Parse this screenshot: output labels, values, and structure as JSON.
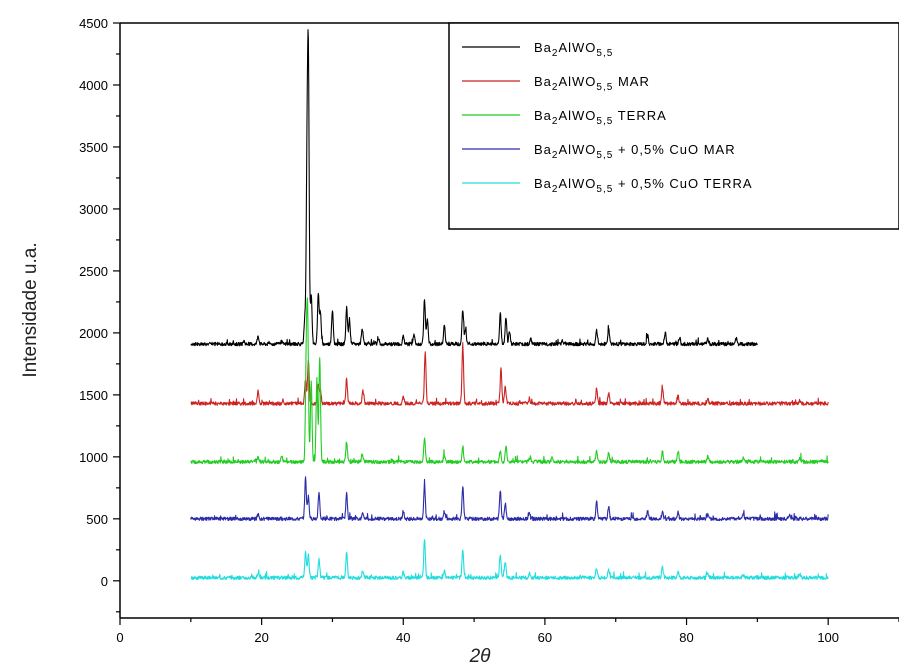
{
  "chart_data": {
    "type": "line",
    "title": "",
    "xlabel": "2θ",
    "ylabel": "Intensidade u.a.",
    "xlim": [
      0,
      110
    ],
    "ylim": [
      -300,
      4500
    ],
    "xticks": [
      0,
      20,
      40,
      60,
      80,
      100
    ],
    "yticks": [
      0,
      500,
      1000,
      1500,
      2000,
      2500,
      3000,
      3500,
      4000,
      4500
    ],
    "grid": false,
    "legend_position": "top-right",
    "series": [
      {
        "name": "Ba2AlWO5,5",
        "legend_parts": {
          "base": "Ba",
          "sub1": "2",
          "mid": "AlWO",
          "sub2": "5,5",
          "suffix": ""
        },
        "color": "#000000",
        "baseline": 1910,
        "x_range": [
          10,
          90
        ],
        "peaks": [
          [
            17.5,
            25
          ],
          [
            19.5,
            70
          ],
          [
            22.8,
            20
          ],
          [
            26.1,
            200
          ],
          [
            26.4,
            1300
          ],
          [
            26.6,
            2200
          ],
          [
            27.0,
            400
          ],
          [
            28.0,
            400
          ],
          [
            28.3,
            250
          ],
          [
            30.0,
            280
          ],
          [
            32.0,
            300
          ],
          [
            32.4,
            200
          ],
          [
            34.2,
            130
          ],
          [
            36.5,
            40
          ],
          [
            40.0,
            60
          ],
          [
            41.5,
            80
          ],
          [
            43.0,
            360
          ],
          [
            43.4,
            200
          ],
          [
            45.8,
            150
          ],
          [
            48.4,
            280
          ],
          [
            48.8,
            120
          ],
          [
            53.7,
            240
          ],
          [
            54.5,
            220
          ],
          [
            55.0,
            100
          ],
          [
            58.0,
            40
          ],
          [
            62.5,
            30
          ],
          [
            67.3,
            110
          ],
          [
            69.0,
            130
          ],
          [
            74.5,
            70
          ],
          [
            77.0,
            90
          ],
          [
            79.0,
            50
          ],
          [
            83.0,
            50
          ],
          [
            87.0,
            45
          ]
        ]
      },
      {
        "name": "Ba2AlWO5,5 MAR",
        "legend_parts": {
          "base": "Ba",
          "sub1": "2",
          "mid": "AlWO",
          "sub2": "5,5",
          "suffix": "MAR"
        },
        "color": "#cc2222",
        "baseline": 1430,
        "x_range": [
          10,
          100
        ],
        "peaks": [
          [
            19.5,
            100
          ],
          [
            23.0,
            30
          ],
          [
            26.2,
            200
          ],
          [
            26.6,
            350
          ],
          [
            28.0,
            150
          ],
          [
            28.3,
            110
          ],
          [
            32.0,
            200
          ],
          [
            34.3,
            100
          ],
          [
            40.0,
            60
          ],
          [
            43.1,
            420
          ],
          [
            48.4,
            460
          ],
          [
            53.8,
            280
          ],
          [
            54.4,
            140
          ],
          [
            57.8,
            40
          ],
          [
            67.3,
            120
          ],
          [
            69.0,
            90
          ],
          [
            76.6,
            130
          ],
          [
            78.8,
            60
          ],
          [
            83.0,
            40
          ],
          [
            96.0,
            30
          ]
        ]
      },
      {
        "name": "Ba2AlWO5,5 TERRA",
        "legend_parts": {
          "base": "Ba",
          "sub1": "2",
          "mid": "AlWO",
          "sub2": "5,5",
          "suffix": "TERRA"
        },
        "color": "#22cc22",
        "baseline": 960,
        "x_range": [
          10,
          100
        ],
        "peaks": [
          [
            19.5,
            40
          ],
          [
            22.8,
            50
          ],
          [
            26.3,
            780
          ],
          [
            26.5,
            1100
          ],
          [
            27.0,
            650
          ],
          [
            27.8,
            650
          ],
          [
            28.2,
            850
          ],
          [
            32.0,
            160
          ],
          [
            34.2,
            60
          ],
          [
            43.0,
            190
          ],
          [
            45.8,
            60
          ],
          [
            48.4,
            110
          ],
          [
            53.7,
            90
          ],
          [
            54.5,
            130
          ],
          [
            57.8,
            30
          ],
          [
            61.0,
            30
          ],
          [
            67.3,
            80
          ],
          [
            69.0,
            70
          ],
          [
            76.6,
            80
          ],
          [
            78.8,
            90
          ],
          [
            83.0,
            40
          ],
          [
            88.0,
            35
          ],
          [
            96.0,
            35
          ]
        ]
      },
      {
        "name": "Ba2AlWO5,5 + 0,5% CuO MAR",
        "legend_parts": {
          "base": "Ba",
          "sub1": "2",
          "mid": "AlWO",
          "sub2": "5,5",
          "suffix": "+ 0,5% CuO MAR"
        },
        "color": "#2b2ba8",
        "baseline": 500,
        "x_range": [
          10,
          100
        ],
        "peaks": [
          [
            19.5,
            35
          ],
          [
            26.2,
            330
          ],
          [
            26.6,
            180
          ],
          [
            28.1,
            220
          ],
          [
            32.0,
            200
          ],
          [
            34.3,
            50
          ],
          [
            40.0,
            60
          ],
          [
            43.0,
            280
          ],
          [
            45.8,
            60
          ],
          [
            48.4,
            260
          ],
          [
            53.7,
            230
          ],
          [
            54.4,
            120
          ],
          [
            57.8,
            40
          ],
          [
            67.3,
            140
          ],
          [
            69.0,
            90
          ],
          [
            74.5,
            60
          ],
          [
            76.6,
            60
          ],
          [
            78.8,
            50
          ],
          [
            83.0,
            35
          ],
          [
            88.0,
            30
          ],
          [
            94.5,
            30
          ]
        ]
      },
      {
        "name": "Ba2AlWO5,5 + 0,5% CuO TERRA",
        "legend_parts": {
          "base": "Ba",
          "sub1": "2",
          "mid": "AlWO",
          "sub2": "5,5",
          "suffix": "+ 0,5% CuO TERRA"
        },
        "color": "#22dddd",
        "baseline": 25,
        "x_range": [
          10,
          100
        ],
        "peaks": [
          [
            19.5,
            40
          ],
          [
            26.2,
            210
          ],
          [
            26.6,
            180
          ],
          [
            28.1,
            150
          ],
          [
            32.0,
            200
          ],
          [
            34.3,
            60
          ],
          [
            40.0,
            45
          ],
          [
            43.0,
            310
          ],
          [
            45.8,
            60
          ],
          [
            48.4,
            220
          ],
          [
            53.7,
            190
          ],
          [
            54.4,
            130
          ],
          [
            57.8,
            40
          ],
          [
            67.3,
            80
          ],
          [
            69.0,
            70
          ],
          [
            76.6,
            80
          ],
          [
            78.8,
            50
          ],
          [
            83.0,
            35
          ],
          [
            88.0,
            25
          ],
          [
            96.0,
            25
          ]
        ]
      }
    ]
  }
}
